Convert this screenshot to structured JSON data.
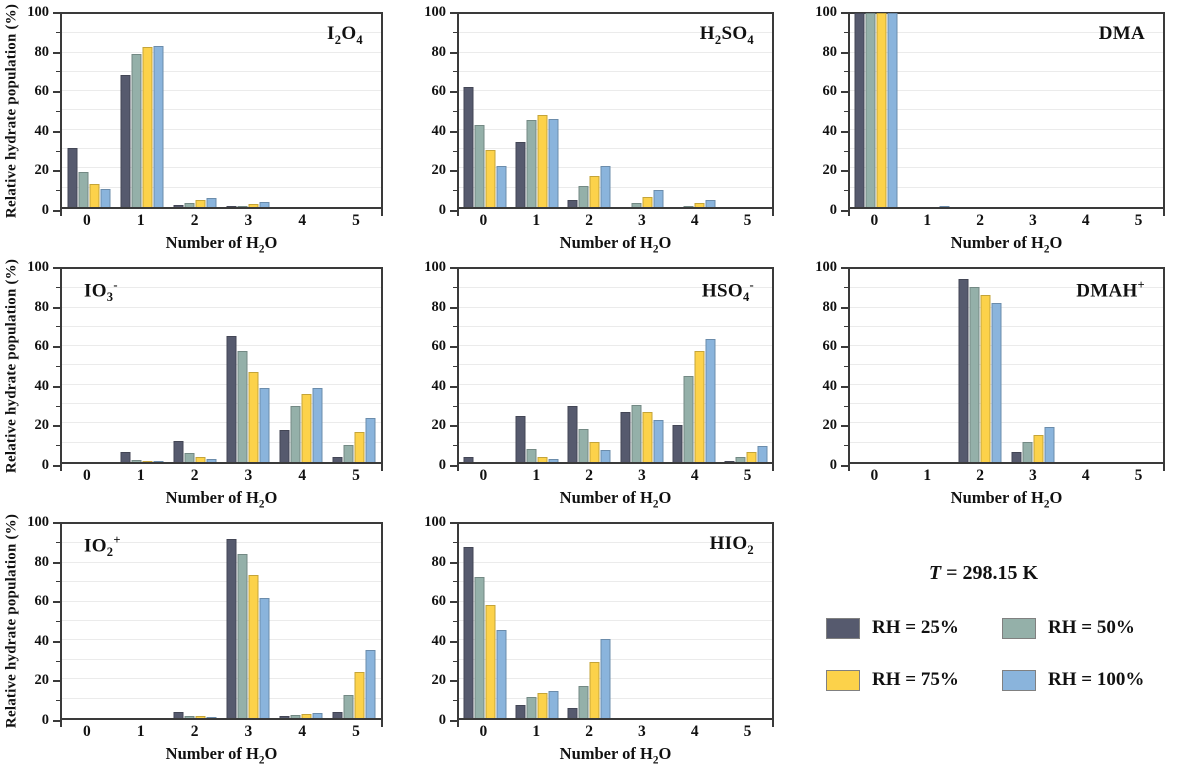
{
  "figure": {
    "ylabel": "Relative hydrate population (%)",
    "xlabel_segments": [
      {
        "t": "Number of H"
      },
      {
        "t": "2",
        "sub": true
      },
      {
        "t": "O"
      }
    ],
    "x_tick_labels": [
      "0",
      "1",
      "2",
      "3",
      "4",
      "5"
    ],
    "y_tick_labels": [
      "0",
      "20",
      "40",
      "60",
      "80",
      "100"
    ]
  },
  "legend": {
    "temperature_segments": [
      {
        "t": "T",
        "italic": true
      },
      {
        "t": " = 298.15 K"
      }
    ],
    "entries": [
      {
        "label": "RH = 25%",
        "color": "#565a6e"
      },
      {
        "label": "RH = 50%",
        "color": "#94b0a9"
      },
      {
        "label": "RH = 75%",
        "color": "#fcd24a"
      },
      {
        "label": "RH = 100%",
        "color": "#8ab4dc"
      }
    ]
  },
  "chart_data": {
    "type": "bar",
    "categories": [
      0,
      1,
      2,
      3,
      4,
      5
    ],
    "xlabel": "Number of H2O",
    "ylabel": "Relative hydrate population (%)",
    "ylim": [
      0,
      100
    ],
    "y_major_step": 20,
    "y_minor_step": 10,
    "grid": "horizontal, every 10, light gray, behind bars",
    "series_names": [
      "RH = 25%",
      "RH = 50%",
      "RH = 75%",
      "RH = 100%"
    ],
    "series_colors": [
      "#565a6e",
      "#94b0a9",
      "#fcd24a",
      "#8ab4dc"
    ],
    "temperature": "T = 298.15 K",
    "panels": [
      {
        "id": "I2O4",
        "title_segments": [
          {
            "t": "I"
          },
          {
            "t": "2",
            "sub": true
          },
          {
            "t": "O"
          },
          {
            "t": "4",
            "sub": true
          }
        ],
        "title_pos": "right",
        "show_ylabel": true,
        "series": [
          {
            "name": "RH = 25%",
            "values": [
              30.5,
              68,
              1,
              0.4,
              0,
              0
            ]
          },
          {
            "name": "RH = 50%",
            "values": [
              18,
              79,
              2,
              0.6,
              0,
              0
            ]
          },
          {
            "name": "RH = 75%",
            "values": [
              12,
              82.5,
              3.5,
              1.5,
              0,
              0
            ]
          },
          {
            "name": "RH = 100%",
            "values": [
              9,
              83,
              4.5,
              2.7,
              0,
              0
            ]
          }
        ]
      },
      {
        "id": "H2SO4",
        "title_segments": [
          {
            "t": "H"
          },
          {
            "t": "2",
            "sub": true
          },
          {
            "t": "SO"
          },
          {
            "t": "4",
            "sub": true
          }
        ],
        "title_pos": "right",
        "show_ylabel": false,
        "series": [
          {
            "name": "RH = 25%",
            "values": [
              62,
              33.5,
              3.5,
              0,
              0,
              0
            ]
          },
          {
            "name": "RH = 50%",
            "values": [
              42,
              45,
              10.5,
              2,
              0.5,
              0
            ]
          },
          {
            "name": "RH = 75%",
            "values": [
              29.5,
              47.5,
              16,
              5,
              1.8,
              0
            ]
          },
          {
            "name": "RH = 100%",
            "values": [
              21,
              45.5,
              21,
              8.5,
              3.5,
              0
            ]
          }
        ]
      },
      {
        "id": "DMA",
        "title_segments": [
          {
            "t": "DMA"
          }
        ],
        "title_pos": "right",
        "show_ylabel": false,
        "series": [
          {
            "name": "RH = 25%",
            "values": [
              100,
              0,
              0,
              0,
              0,
              0
            ]
          },
          {
            "name": "RH = 50%",
            "values": [
              100,
              0,
              0,
              0,
              0,
              0
            ]
          },
          {
            "name": "RH = 75%",
            "values": [
              100,
              0,
              0,
              0,
              0,
              0
            ]
          },
          {
            "name": "RH = 100%",
            "values": [
              100,
              0.5,
              0,
              0,
              0,
              0
            ]
          }
        ]
      },
      {
        "id": "IO3-",
        "title_segments": [
          {
            "t": "IO"
          },
          {
            "t": "3",
            "sub": true
          },
          {
            "t": "-",
            "sup": true
          }
        ],
        "title_pos": "left",
        "show_ylabel": true,
        "series": [
          {
            "name": "RH = 25%",
            "values": [
              0,
              5,
              10.5,
              65,
              16.5,
              2.5
            ]
          },
          {
            "name": "RH = 50%",
            "values": [
              0,
              1,
              4.5,
              57,
              29,
              8.5
            ]
          },
          {
            "name": "RH = 75%",
            "values": [
              0,
              0.3,
              2.5,
              46.5,
              35,
              15.5
            ]
          },
          {
            "name": "RH = 100%",
            "values": [
              0,
              0.3,
              1.5,
              38,
              38,
              22.5
            ]
          }
        ]
      },
      {
        "id": "HSO4-",
        "title_segments": [
          {
            "t": "HSO"
          },
          {
            "t": "4",
            "sub": true
          },
          {
            "t": "-",
            "sup": true
          }
        ],
        "title_pos": "right",
        "show_ylabel": false,
        "series": [
          {
            "name": "RH = 25%",
            "values": [
              2.5,
              23.5,
              29,
              25.5,
              19,
              0.5
            ]
          },
          {
            "name": "RH = 50%",
            "values": [
              0,
              6.5,
              17,
              29.5,
              44,
              2.5
            ]
          },
          {
            "name": "RH = 75%",
            "values": [
              0,
              2.5,
              10,
              25.5,
              57,
              5
            ]
          },
          {
            "name": "RH = 100%",
            "values": [
              0,
              1.5,
              6,
              21.5,
              63.5,
              8
            ]
          }
        ]
      },
      {
        "id": "DMAH+",
        "title_segments": [
          {
            "t": "DMAH"
          },
          {
            "t": "+",
            "sup": true
          }
        ],
        "title_pos": "right",
        "show_ylabel": false,
        "series": [
          {
            "name": "RH = 25%",
            "values": [
              0,
              0,
              94.5,
              5,
              0,
              0
            ]
          },
          {
            "name": "RH = 50%",
            "values": [
              0,
              0,
              90,
              10,
              0,
              0
            ]
          },
          {
            "name": "RH = 75%",
            "values": [
              0,
              0,
              86,
              14,
              0,
              0
            ]
          },
          {
            "name": "RH = 100%",
            "values": [
              0,
              0,
              82,
              18,
              0,
              0
            ]
          }
        ]
      },
      {
        "id": "IO2+",
        "title_segments": [
          {
            "t": "IO"
          },
          {
            "t": "2",
            "sub": true
          },
          {
            "t": "+",
            "sup": true
          }
        ],
        "title_pos": "left",
        "show_ylabel": true,
        "series": [
          {
            "name": "RH = 25%",
            "values": [
              0,
              0,
              3,
              92.5,
              0.8,
              3.3
            ]
          },
          {
            "name": "RH = 50%",
            "values": [
              0,
              0,
              1.2,
              84.5,
              1.5,
              12
            ]
          },
          {
            "name": "RH = 75%",
            "values": [
              0,
              0,
              0.8,
              73.5,
              2.2,
              23.5
            ]
          },
          {
            "name": "RH = 100%",
            "values": [
              0,
              0,
              0.3,
              62,
              2.5,
              35
            ]
          }
        ]
      },
      {
        "id": "HIO2",
        "title_segments": [
          {
            "t": "HIO"
          },
          {
            "t": "2",
            "sub": true
          }
        ],
        "title_pos": "right",
        "show_ylabel": false,
        "series": [
          {
            "name": "RH = 25%",
            "values": [
              88,
              6.5,
              5,
              0,
              0,
              0
            ]
          },
          {
            "name": "RH = 50%",
            "values": [
              72.5,
              11,
              16.5,
              0,
              0,
              0
            ]
          },
          {
            "name": "RH = 75%",
            "values": [
              58,
              13,
              29,
              0,
              0,
              0
            ]
          },
          {
            "name": "RH = 100%",
            "values": [
              45.5,
              14,
              40.5,
              0,
              0,
              0
            ]
          }
        ]
      }
    ]
  }
}
